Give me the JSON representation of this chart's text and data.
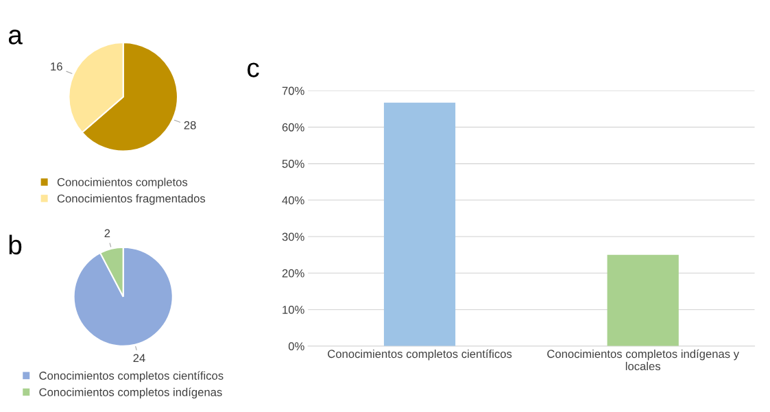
{
  "chart_data": [
    {
      "type": "pie",
      "annotations": [
        "a"
      ],
      "categories": [
        "Conocimientos completos",
        "Conocimientos fragmentados"
      ],
      "values": [
        28,
        16
      ],
      "colors": [
        "#bf9000",
        "#ffe699"
      ],
      "data_labels": true,
      "legend": "bottom"
    },
    {
      "type": "pie",
      "annotations": [
        "b"
      ],
      "categories": [
        "Conocimientos completos científicos",
        "Conocimientos completos indígenas"
      ],
      "values": [
        24,
        2
      ],
      "colors": [
        "#8faadc",
        "#a9d18e"
      ],
      "data_labels": true,
      "legend": "bottom"
    },
    {
      "type": "bar",
      "annotations": [
        "c"
      ],
      "categories": [
        "Conocimientos completos científicos",
        "Conocimientos completos indígenas y\nlocales"
      ],
      "values": [
        66.7,
        25
      ],
      "colors": [
        "#9dc3e6",
        "#a9d18e"
      ],
      "ylim": [
        0,
        70
      ],
      "yticks": [
        {
          "value": 0,
          "label": "0%"
        },
        {
          "value": 10,
          "label": "10%"
        },
        {
          "value": 20,
          "label": "20%"
        },
        {
          "value": 30,
          "label": "30%"
        },
        {
          "value": 40,
          "label": "40%"
        },
        {
          "value": 50,
          "label": "50%"
        },
        {
          "value": 60,
          "label": "60%"
        },
        {
          "value": 70,
          "label": "70%"
        }
      ],
      "grid": "y"
    }
  ]
}
